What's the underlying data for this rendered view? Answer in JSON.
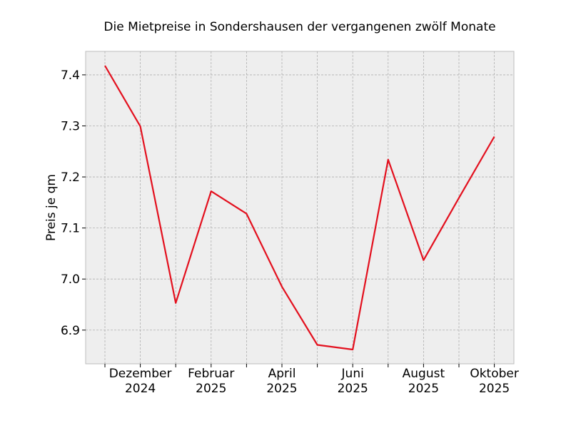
{
  "chart_data": {
    "type": "line",
    "title": "Die Mietpreise in Sondershausen der vergangenen zwölf Monate",
    "xlabel": "",
    "ylabel": "Preis je qm",
    "x": [
      "2024-11",
      "2024-12",
      "2025-01",
      "2025-02",
      "2025-03",
      "2025-04",
      "2025-05",
      "2025-06",
      "2025-07",
      "2025-08",
      "2025-09",
      "2025-10"
    ],
    "series": [
      {
        "values": [
          7.418,
          7.299,
          6.953,
          7.172,
          7.128,
          6.985,
          6.871,
          6.862,
          7.234,
          7.037,
          7.159,
          7.279
        ]
      }
    ],
    "ylim": [
      6.834,
      7.446
    ],
    "yticks": [
      "6.9",
      "7.0",
      "7.1",
      "7.2",
      "7.3",
      "7.4"
    ],
    "xtick_labels": [
      {
        "x": "2024-12",
        "line1": "Dezember",
        "line2": "2024"
      },
      {
        "x": "2025-02",
        "line1": "Februar",
        "line2": "2025"
      },
      {
        "x": "2025-04",
        "line1": "April",
        "line2": "2025"
      },
      {
        "x": "2025-06",
        "line1": "Juni",
        "line2": "2025"
      },
      {
        "x": "2025-08",
        "line1": "August",
        "line2": "2025"
      },
      {
        "x": "2025-10",
        "line1": "Oktober",
        "line2": "2025"
      }
    ],
    "grid": true,
    "colors": {
      "line": "#e3101e",
      "plot_bg": "#eeeeee",
      "grid": "#b0b0b0"
    }
  }
}
